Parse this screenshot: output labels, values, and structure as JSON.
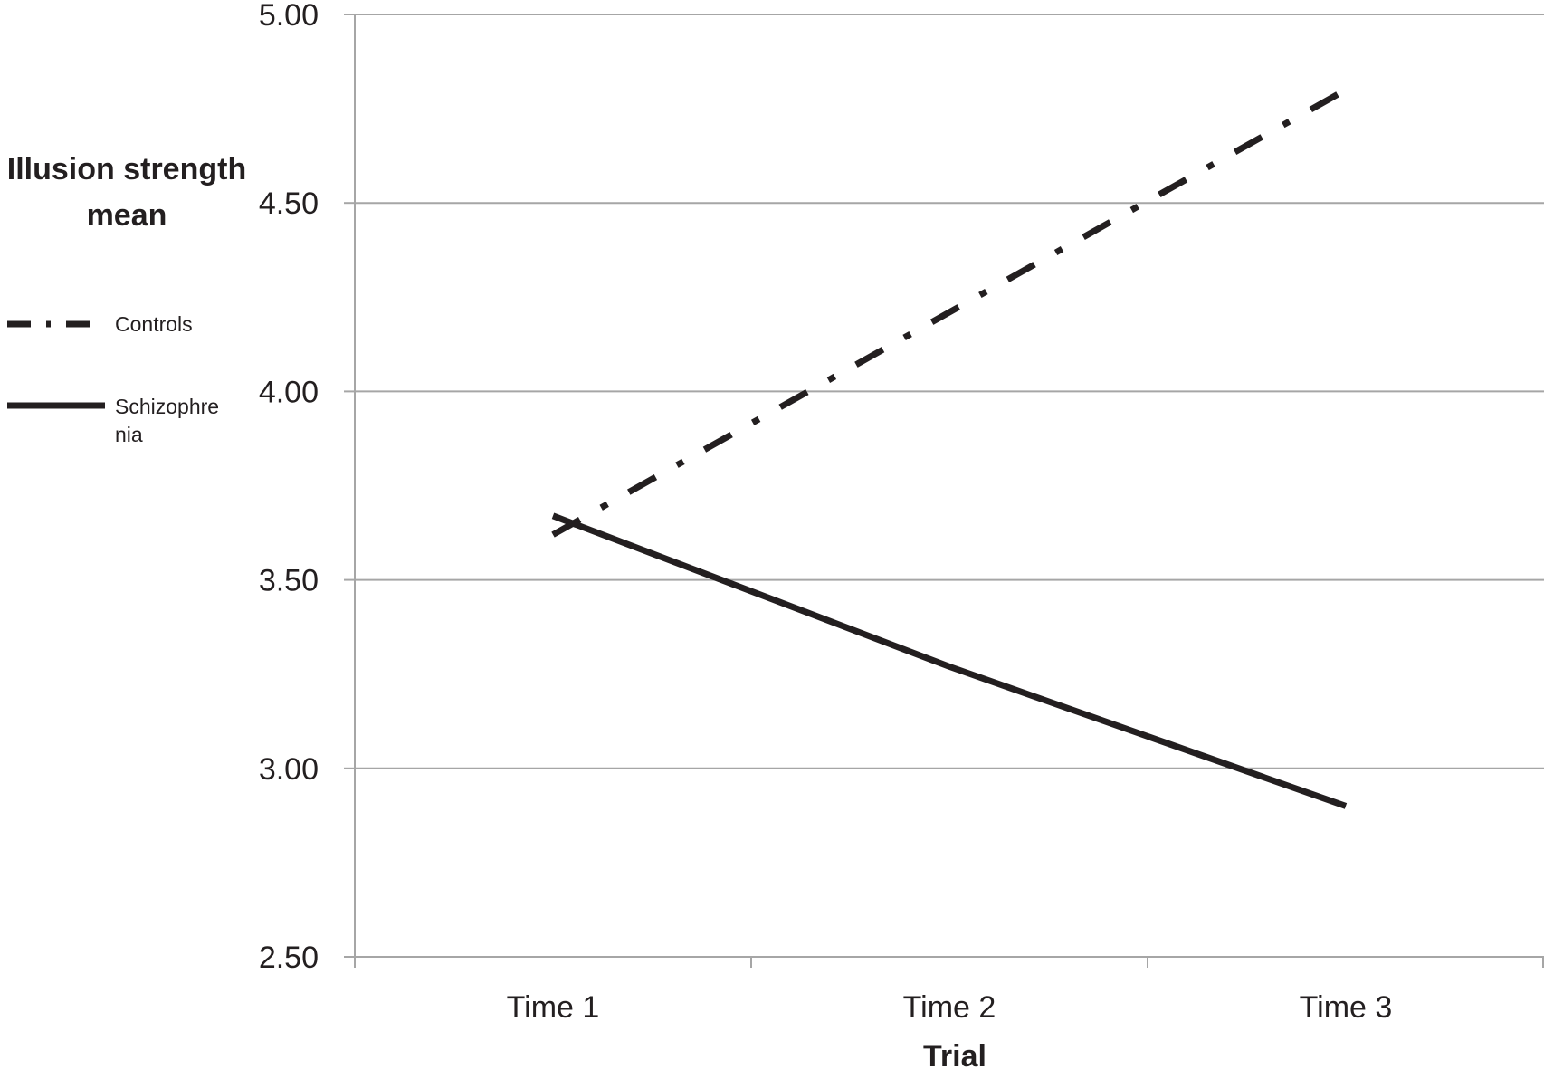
{
  "chart_data": {
    "type": "line",
    "title": "",
    "ylabel_lines": [
      "Illusion strength",
      "mean"
    ],
    "xlabel": "Trial",
    "categories": [
      "Time 1",
      "Time 2",
      "Time 3"
    ],
    "ylim": [
      2.5,
      5.0
    ],
    "yticks": [
      2.5,
      3.0,
      3.5,
      4.0,
      4.5,
      5.0
    ],
    "ytick_labels": [
      "2.50",
      "3.00",
      "3.50",
      "4.00",
      "4.50",
      "5.00"
    ],
    "grid": true,
    "legend_position": "left",
    "series": [
      {
        "name": "Controls",
        "values": [
          3.62,
          4.21,
          4.8
        ],
        "style": "dash-dot",
        "color": "#231f20"
      },
      {
        "name": "Schizophrenia",
        "label_lines": [
          "Schizophre",
          "nia"
        ],
        "values": [
          3.67,
          3.27,
          2.9
        ],
        "style": "solid",
        "color": "#231f20"
      }
    ],
    "gridline_color": "#a6a6a6"
  }
}
